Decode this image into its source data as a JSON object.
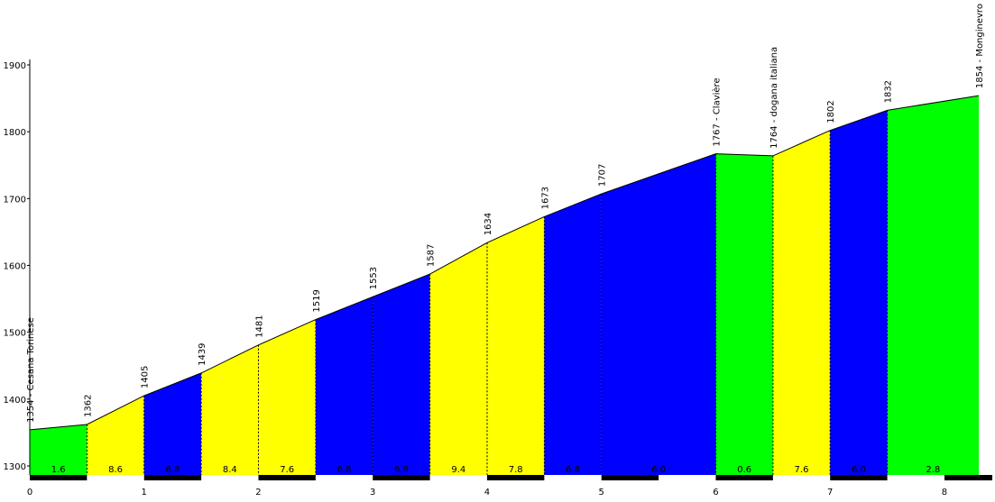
{
  "chart_data": {
    "type": "area",
    "title": "",
    "xlabel": "",
    "ylabel": "",
    "xlim": [
      0,
      8.3
    ],
    "ylim": [
      1290,
      1900
    ],
    "grid": false,
    "y_ticks": [
      1300,
      1400,
      1500,
      1600,
      1700,
      1800,
      1900
    ],
    "x_ticks": [
      0,
      1,
      2,
      3,
      4,
      5,
      6,
      7,
      8
    ],
    "profile": [
      {
        "x": 0.0,
        "y": 1354,
        "label": "1354 - Cesana Torinese"
      },
      {
        "x": 0.5,
        "y": 1362,
        "label": "1362"
      },
      {
        "x": 1.0,
        "y": 1405,
        "label": "1405"
      },
      {
        "x": 1.5,
        "y": 1439,
        "label": "1439"
      },
      {
        "x": 2.0,
        "y": 1481,
        "label": "1481"
      },
      {
        "x": 2.5,
        "y": 1519,
        "label": "1519"
      },
      {
        "x": 3.0,
        "y": 1553,
        "label": "1553"
      },
      {
        "x": 3.5,
        "y": 1587,
        "label": "1587"
      },
      {
        "x": 4.0,
        "y": 1634,
        "label": "1634"
      },
      {
        "x": 4.5,
        "y": 1673,
        "label": "1673"
      },
      {
        "x": 5.0,
        "y": 1707,
        "label": "1707"
      },
      {
        "x": 6.0,
        "y": 1767,
        "label": "1767 - Clavière"
      },
      {
        "x": 6.5,
        "y": 1764,
        "label": "1764 - dogana italiana"
      },
      {
        "x": 7.0,
        "y": 1802,
        "label": "1802"
      },
      {
        "x": 7.5,
        "y": 1832,
        "label": "1832"
      },
      {
        "x": 8.3,
        "y": 1854,
        "label": "1854 - Monginevro"
      }
    ],
    "segments": [
      {
        "from": 0.0,
        "to": 0.5,
        "grade": "1.6",
        "color": "#00ff00"
      },
      {
        "from": 0.5,
        "to": 1.0,
        "grade": "8.6",
        "color": "#ffff00"
      },
      {
        "from": 1.0,
        "to": 1.5,
        "grade": "6.8",
        "color": "#0000ff"
      },
      {
        "from": 1.5,
        "to": 2.0,
        "grade": "8.4",
        "color": "#ffff00"
      },
      {
        "from": 2.0,
        "to": 2.5,
        "grade": "7.6",
        "color": "#ffff00"
      },
      {
        "from": 2.5,
        "to": 3.0,
        "grade": "6.8",
        "color": "#0000ff"
      },
      {
        "from": 3.0,
        "to": 3.5,
        "grade": "6.8",
        "color": "#0000ff"
      },
      {
        "from": 3.5,
        "to": 4.0,
        "grade": "9.4",
        "color": "#ffff00"
      },
      {
        "from": 4.0,
        "to": 4.5,
        "grade": "7.8",
        "color": "#ffff00"
      },
      {
        "from": 4.5,
        "to": 5.0,
        "grade": "6.8",
        "color": "#0000ff"
      },
      {
        "from": 5.0,
        "to": 6.0,
        "grade": "6.0",
        "color": "#0000ff"
      },
      {
        "from": 6.0,
        "to": 6.5,
        "grade": "0.6",
        "color": "#00ff00"
      },
      {
        "from": 6.5,
        "to": 7.0,
        "grade": "7.6",
        "color": "#ffff00"
      },
      {
        "from": 7.0,
        "to": 7.5,
        "grade": "6.0",
        "color": "#0000ff"
      },
      {
        "from": 7.5,
        "to": 8.3,
        "grade": "2.8",
        "color": "#00ff00"
      }
    ]
  }
}
